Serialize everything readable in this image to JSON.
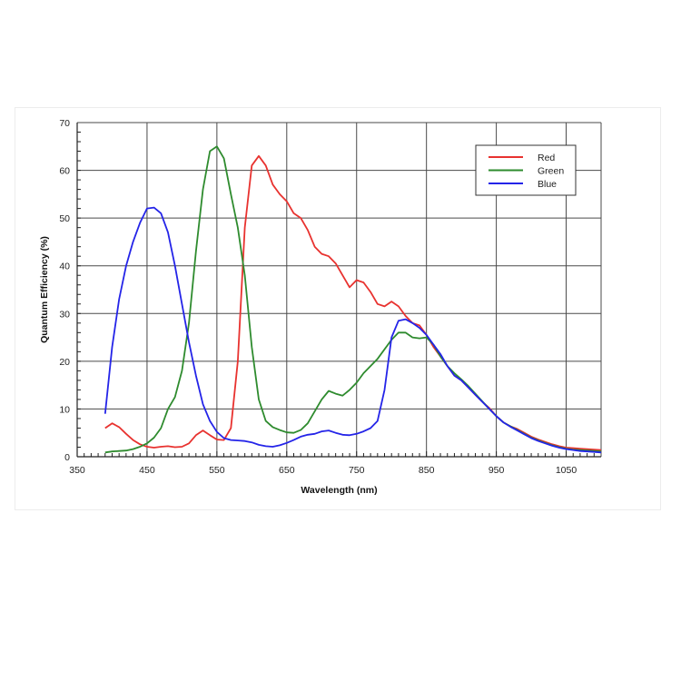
{
  "chart_data": {
    "type": "line",
    "title": "",
    "xlabel": "Wavelength (nm)",
    "ylabel": "Quantum Efficiency (%)",
    "xlim": [
      350,
      1100
    ],
    "ylim": [
      0,
      70
    ],
    "x_ticks": [
      350,
      450,
      550,
      650,
      750,
      850,
      950,
      1050
    ],
    "y_ticks": [
      0,
      10,
      20,
      30,
      40,
      50,
      60,
      70
    ],
    "grid": true,
    "legend_position": "top-right",
    "series": [
      {
        "name": "Red",
        "color": "#e8322f",
        "points": [
          [
            390,
            6
          ],
          [
            400,
            7
          ],
          [
            410,
            6.2
          ],
          [
            420,
            4.8
          ],
          [
            430,
            3.5
          ],
          [
            440,
            2.6
          ],
          [
            450,
            2.1
          ],
          [
            460,
            1.9
          ],
          [
            470,
            2.1
          ],
          [
            480,
            2.2
          ],
          [
            490,
            2.0
          ],
          [
            500,
            2.1
          ],
          [
            510,
            2.8
          ],
          [
            520,
            4.5
          ],
          [
            530,
            5.5
          ],
          [
            540,
            4.5
          ],
          [
            550,
            3.6
          ],
          [
            560,
            3.5
          ],
          [
            570,
            6
          ],
          [
            580,
            20
          ],
          [
            590,
            48
          ],
          [
            600,
            61
          ],
          [
            610,
            63
          ],
          [
            620,
            61
          ],
          [
            630,
            57
          ],
          [
            640,
            55
          ],
          [
            650,
            53.5
          ],
          [
            660,
            51
          ],
          [
            670,
            50
          ],
          [
            680,
            47.5
          ],
          [
            690,
            44
          ],
          [
            700,
            42.5
          ],
          [
            710,
            42
          ],
          [
            720,
            40.5
          ],
          [
            730,
            38
          ],
          [
            740,
            35.5
          ],
          [
            750,
            37
          ],
          [
            760,
            36.5
          ],
          [
            770,
            34.5
          ],
          [
            780,
            32
          ],
          [
            790,
            31.5
          ],
          [
            800,
            32.5
          ],
          [
            810,
            31.5
          ],
          [
            820,
            29.5
          ],
          [
            830,
            28
          ],
          [
            840,
            27.5
          ],
          [
            850,
            25.5
          ],
          [
            860,
            23
          ],
          [
            870,
            21
          ],
          [
            880,
            19
          ],
          [
            890,
            17
          ],
          [
            900,
            16
          ],
          [
            910,
            14.5
          ],
          [
            920,
            13
          ],
          [
            930,
            11.5
          ],
          [
            940,
            10.2
          ],
          [
            950,
            8.5
          ],
          [
            960,
            7.2
          ],
          [
            970,
            6.4
          ],
          [
            980,
            5.8
          ],
          [
            990,
            5.0
          ],
          [
            1000,
            4.2
          ],
          [
            1010,
            3.6
          ],
          [
            1020,
            3.1
          ],
          [
            1030,
            2.6
          ],
          [
            1040,
            2.2
          ],
          [
            1050,
            1.9
          ],
          [
            1060,
            1.8
          ],
          [
            1070,
            1.7
          ],
          [
            1080,
            1.6
          ],
          [
            1090,
            1.5
          ],
          [
            1100,
            1.4
          ]
        ]
      },
      {
        "name": "Green",
        "color": "#2e8b2e",
        "points": [
          [
            390,
            0.9
          ],
          [
            400,
            1.1
          ],
          [
            410,
            1.2
          ],
          [
            420,
            1.3
          ],
          [
            430,
            1.6
          ],
          [
            440,
            2.1
          ],
          [
            450,
            2.8
          ],
          [
            460,
            4.0
          ],
          [
            470,
            6
          ],
          [
            480,
            10
          ],
          [
            490,
            12.5
          ],
          [
            500,
            18
          ],
          [
            510,
            28
          ],
          [
            520,
            43
          ],
          [
            530,
            56
          ],
          [
            540,
            64
          ],
          [
            550,
            65
          ],
          [
            560,
            62.5
          ],
          [
            570,
            55
          ],
          [
            580,
            48
          ],
          [
            590,
            38
          ],
          [
            600,
            23
          ],
          [
            610,
            12
          ],
          [
            620,
            7.5
          ],
          [
            630,
            6.2
          ],
          [
            640,
            5.6
          ],
          [
            650,
            5.1
          ],
          [
            660,
            5.0
          ],
          [
            670,
            5.6
          ],
          [
            680,
            7
          ],
          [
            690,
            9.5
          ],
          [
            700,
            12
          ],
          [
            710,
            13.8
          ],
          [
            720,
            13.2
          ],
          [
            730,
            12.8
          ],
          [
            740,
            14
          ],
          [
            750,
            15.5
          ],
          [
            760,
            17.5
          ],
          [
            770,
            19
          ],
          [
            780,
            20.5
          ],
          [
            790,
            22.5
          ],
          [
            800,
            24.5
          ],
          [
            810,
            26
          ],
          [
            820,
            26
          ],
          [
            830,
            25
          ],
          [
            840,
            24.8
          ],
          [
            850,
            25
          ],
          [
            860,
            23.5
          ],
          [
            870,
            21
          ],
          [
            880,
            19
          ],
          [
            890,
            17.5
          ],
          [
            900,
            16.2
          ],
          [
            910,
            14.8
          ],
          [
            920,
            13.2
          ],
          [
            930,
            11.6
          ],
          [
            940,
            10
          ],
          [
            950,
            8.5
          ],
          [
            960,
            7.2
          ],
          [
            970,
            6.4
          ],
          [
            980,
            5.6
          ],
          [
            990,
            4.8
          ],
          [
            1000,
            4.0
          ],
          [
            1010,
            3.4
          ],
          [
            1020,
            2.9
          ],
          [
            1030,
            2.4
          ],
          [
            1040,
            2.0
          ],
          [
            1050,
            1.7
          ],
          [
            1060,
            1.5
          ],
          [
            1070,
            1.4
          ],
          [
            1080,
            1.3
          ],
          [
            1090,
            1.2
          ],
          [
            1100,
            1.1
          ]
        ]
      },
      {
        "name": "Blue",
        "color": "#2424e8",
        "points": [
          [
            390,
            9
          ],
          [
            400,
            23
          ],
          [
            410,
            33
          ],
          [
            420,
            40
          ],
          [
            430,
            45
          ],
          [
            440,
            49
          ],
          [
            450,
            52
          ],
          [
            460,
            52.2
          ],
          [
            470,
            51
          ],
          [
            480,
            47
          ],
          [
            490,
            40
          ],
          [
            500,
            32
          ],
          [
            510,
            24
          ],
          [
            520,
            17
          ],
          [
            530,
            11
          ],
          [
            540,
            7.5
          ],
          [
            550,
            5.2
          ],
          [
            560,
            3.9
          ],
          [
            570,
            3.5
          ],
          [
            580,
            3.4
          ],
          [
            590,
            3.3
          ],
          [
            600,
            3.0
          ],
          [
            610,
            2.5
          ],
          [
            620,
            2.2
          ],
          [
            630,
            2.1
          ],
          [
            640,
            2.4
          ],
          [
            650,
            2.9
          ],
          [
            660,
            3.5
          ],
          [
            670,
            4.2
          ],
          [
            680,
            4.6
          ],
          [
            690,
            4.8
          ],
          [
            700,
            5.3
          ],
          [
            710,
            5.5
          ],
          [
            720,
            5.0
          ],
          [
            730,
            4.6
          ],
          [
            740,
            4.5
          ],
          [
            750,
            4.8
          ],
          [
            760,
            5.3
          ],
          [
            770,
            6
          ],
          [
            780,
            7.5
          ],
          [
            790,
            14
          ],
          [
            800,
            25
          ],
          [
            810,
            28.5
          ],
          [
            820,
            28.8
          ],
          [
            830,
            28
          ],
          [
            840,
            27
          ],
          [
            850,
            25.5
          ],
          [
            860,
            23.5
          ],
          [
            870,
            21.5
          ],
          [
            880,
            19
          ],
          [
            890,
            17
          ],
          [
            900,
            16
          ],
          [
            910,
            14.5
          ],
          [
            920,
            13
          ],
          [
            930,
            11.5
          ],
          [
            940,
            10
          ],
          [
            950,
            8.5
          ],
          [
            960,
            7.2
          ],
          [
            970,
            6.3
          ],
          [
            980,
            5.5
          ],
          [
            990,
            4.7
          ],
          [
            1000,
            3.9
          ],
          [
            1010,
            3.3
          ],
          [
            1020,
            2.8
          ],
          [
            1030,
            2.3
          ],
          [
            1040,
            1.9
          ],
          [
            1050,
            1.6
          ],
          [
            1060,
            1.4
          ],
          [
            1070,
            1.2
          ],
          [
            1080,
            1.1
          ],
          [
            1090,
            1.0
          ],
          [
            1100,
            0.9
          ]
        ]
      }
    ]
  }
}
